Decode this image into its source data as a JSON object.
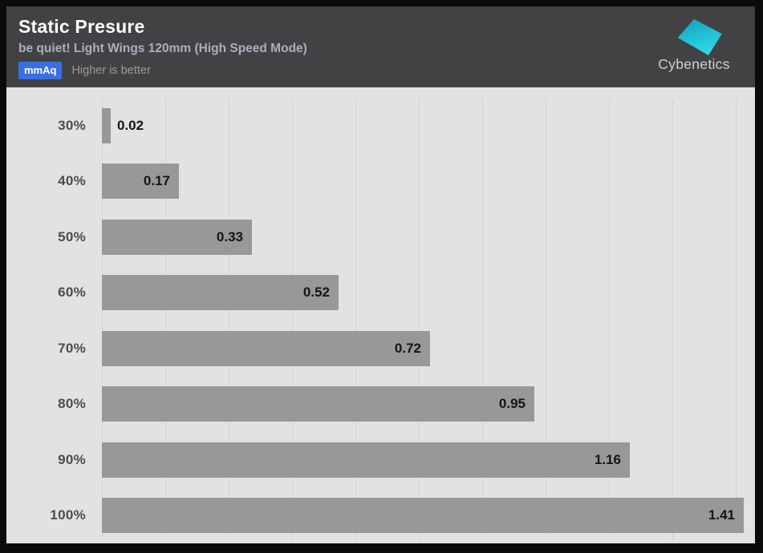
{
  "header": {
    "title": "Static Presure",
    "subtitle": "be quiet! Light Wings 120mm (High Speed Mode)",
    "unit_badge": "mmAq",
    "note": "Higher is better",
    "logo_text": "Cybenetics"
  },
  "colors": {
    "header_bg": "#424245",
    "chart_bg": "#e2e2e2",
    "bar": "#989898",
    "gridline": "#d2d2d2",
    "badge_bg": "#3a6fe3",
    "badge_text": "#ffffff",
    "title_text": "#ffffff",
    "subtitle_text": "#a8b1bc",
    "note_text": "#9b9b9b",
    "category_label_text": "#4c4c4c",
    "value_label_text": "#141414",
    "logo_cyan_dark": "#149cba",
    "logo_cyan_light": "#3adeee"
  },
  "chart_data": {
    "type": "bar",
    "orientation": "horizontal",
    "title": "Static Presure",
    "subtitle": "be quiet! Light Wings 120mm (High Speed Mode)",
    "unit": "mmAq",
    "note": "Higher is better",
    "categories": [
      "30%",
      "40%",
      "50%",
      "60%",
      "70%",
      "80%",
      "90%",
      "100%"
    ],
    "values": [
      0.02,
      0.17,
      0.33,
      0.52,
      0.72,
      0.95,
      1.16,
      1.41
    ],
    "value_labels": [
      "0.02",
      "0.17",
      "0.33",
      "0.52",
      "0.72",
      "0.95",
      "1.16",
      "1.41"
    ],
    "xlim": [
      0,
      1.41
    ],
    "gridline_divisions": 10,
    "grid": true,
    "legend": false
  }
}
